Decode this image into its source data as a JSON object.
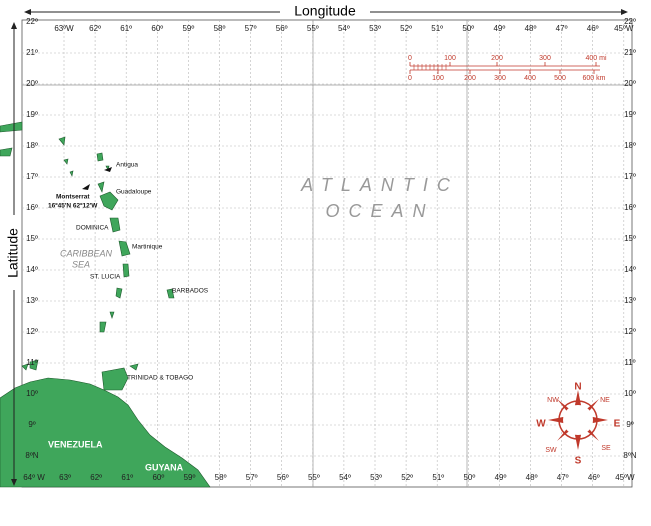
{
  "axes": {
    "top_label": "Longitude",
    "left_label": "Latitude"
  },
  "top_labels": [
    "63ºW",
    "62º",
    "61º",
    "60º",
    "59º",
    "58º",
    "57º",
    "56º",
    "55º",
    "54º",
    "53º",
    "52º",
    "51º",
    "50º",
    "49º",
    "48º",
    "47º",
    "46º",
    "45ºW"
  ],
  "bottom_labels": [
    "64º W",
    "63º",
    "62º",
    "61º",
    "60º",
    "59º",
    "58º",
    "57º",
    "56º",
    "55º",
    "54º",
    "53º",
    "52º",
    "51º",
    "50º",
    "49º",
    "48º",
    "47º",
    "46º",
    "45ºW"
  ],
  "left_labels": [
    "22º",
    "21º",
    "20º",
    "19º",
    "18º",
    "17º",
    "16º",
    "15º",
    "14º",
    "13º",
    "12º",
    "11º",
    "10º",
    "9º",
    "8ºN"
  ],
  "right_labels": [
    "22º",
    "21º",
    "20º",
    "19º",
    "18º",
    "17º",
    "16º",
    "15º",
    "14º",
    "13º",
    "12º",
    "11º",
    "10º",
    "9º",
    "8ºN"
  ],
  "places": {
    "antigua": "Antigua",
    "guadaloupe": "Guadaloupe",
    "montserrat": "Montserrat",
    "montserrat_coords": "16º45'N 62º12'W",
    "dominica": "DOMINICA",
    "martinique": "Martinique",
    "st_lucia": "ST. LUCIA",
    "barbados": "BARBADOS",
    "trinidad": "TRINIDAD & TOBAGO",
    "venezuela": "VENEZUELA",
    "guyana": "GUYANA"
  },
  "seas": {
    "atlantic_1": "ATLANTIC",
    "atlantic_2": "OCEAN",
    "caribbean_1": "CARIBBEAN",
    "caribbean_2": "SEA"
  },
  "scale": {
    "miles": [
      "0",
      "100",
      "200",
      "300",
      "400 mi"
    ],
    "km": [
      "0",
      "100",
      "200",
      "300",
      "400",
      "500",
      "600 km"
    ]
  },
  "compass": {
    "n": "N",
    "ne": "NE",
    "e": "E",
    "se": "SE",
    "s": "S",
    "sw": "SW",
    "w": "W",
    "nw": "NW"
  }
}
